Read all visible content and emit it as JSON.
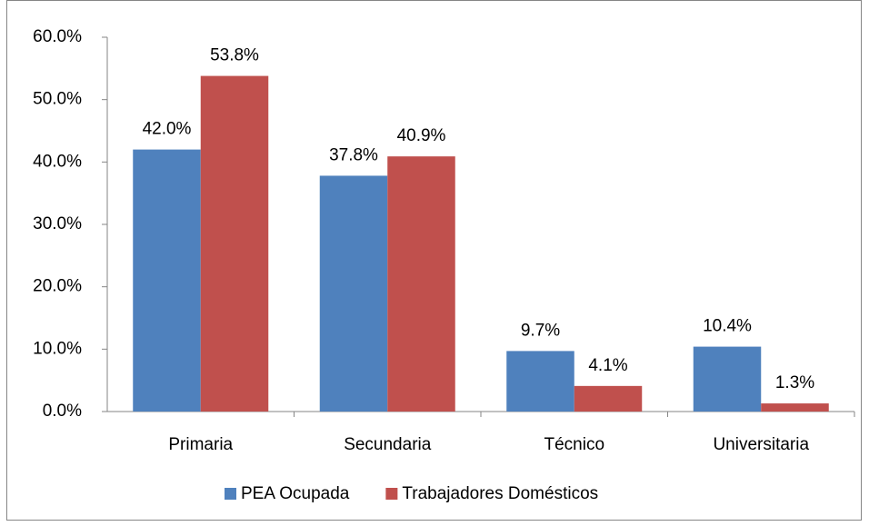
{
  "chart_data": {
    "type": "bar",
    "categories": [
      "Primaria",
      "Secundaria",
      "Técnico",
      "Universitaria"
    ],
    "series": [
      {
        "name": "PEA Ocupada",
        "color": "#4f81bd",
        "values": [
          42.0,
          37.8,
          9.7,
          10.4
        ],
        "value_labels": [
          "42.0%",
          "37.8%",
          "9.7%",
          "10.4%"
        ]
      },
      {
        "name": "Trabajadores Domésticos",
        "color": "#c0504d",
        "values": [
          53.8,
          40.9,
          4.1,
          1.3
        ],
        "value_labels": [
          "53.8%",
          "40.9%",
          "4.1%",
          "1.3%"
        ]
      }
    ],
    "ylim": [
      0,
      60
    ],
    "yticks": [
      {
        "value": 0,
        "label": "0.0%"
      },
      {
        "value": 10,
        "label": "10.0%"
      },
      {
        "value": 20,
        "label": "20.0%"
      },
      {
        "value": 30,
        "label": "30.0%"
      },
      {
        "value": 40,
        "label": "40.0%"
      },
      {
        "value": 50,
        "label": "50.0%"
      },
      {
        "value": 60,
        "label": "60.0%"
      }
    ],
    "grid": false,
    "legend": "bottom"
  }
}
